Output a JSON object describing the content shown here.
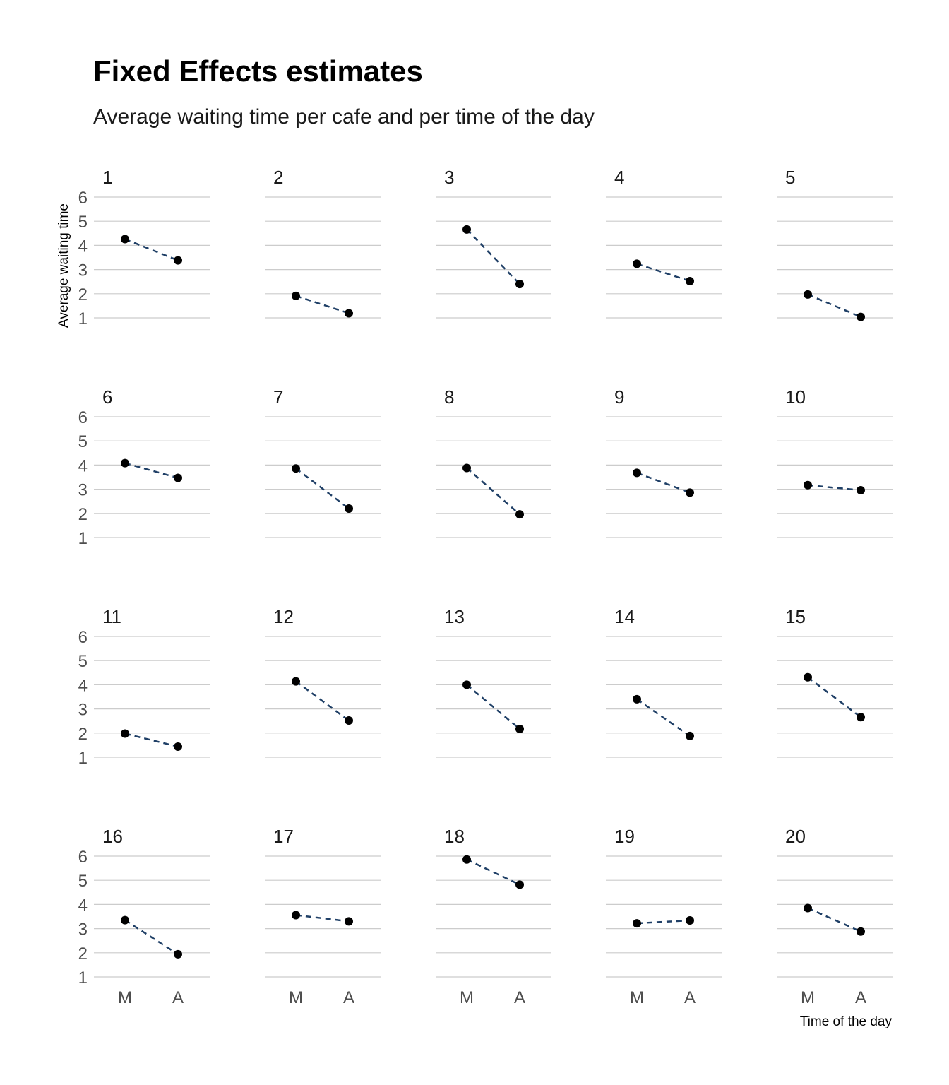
{
  "chart_data": {
    "type": "line",
    "title": "Fixed Effects estimates",
    "subtitle": "Average waiting time per cafe and per time of the day",
    "xlabel": "Time of the day",
    "ylabel": "Average waiting time",
    "categories": [
      "M",
      "A"
    ],
    "y_ticks": [
      "1",
      "2",
      "3",
      "4",
      "5",
      "6"
    ],
    "ylim": [
      1,
      6
    ],
    "grid": "horizontal",
    "facet_layout": "5 columns x 4 rows",
    "colors": {
      "line": "#1f3f66",
      "point": "#000000",
      "grid": "#cccccc"
    },
    "panels": [
      {
        "label": "1",
        "values": [
          4.26,
          3.38
        ]
      },
      {
        "label": "2",
        "values": [
          1.91,
          1.19
        ]
      },
      {
        "label": "3",
        "values": [
          4.66,
          2.4
        ]
      },
      {
        "label": "4",
        "values": [
          3.24,
          2.52
        ]
      },
      {
        "label": "5",
        "values": [
          1.97,
          1.04
        ]
      },
      {
        "label": "6",
        "values": [
          4.08,
          3.47
        ]
      },
      {
        "label": "7",
        "values": [
          3.86,
          2.2
        ]
      },
      {
        "label": "8",
        "values": [
          3.88,
          1.96
        ]
      },
      {
        "label": "9",
        "values": [
          3.68,
          2.86
        ]
      },
      {
        "label": "10",
        "values": [
          3.17,
          2.96
        ]
      },
      {
        "label": "11",
        "values": [
          1.98,
          1.44
        ]
      },
      {
        "label": "12",
        "values": [
          4.14,
          2.52
        ]
      },
      {
        "label": "13",
        "values": [
          4.0,
          2.17
        ]
      },
      {
        "label": "14",
        "values": [
          3.4,
          1.88
        ]
      },
      {
        "label": "15",
        "values": [
          4.31,
          2.66
        ]
      },
      {
        "label": "16",
        "values": [
          3.35,
          1.94
        ]
      },
      {
        "label": "17",
        "values": [
          3.56,
          3.3
        ]
      },
      {
        "label": "18",
        "values": [
          5.86,
          4.82
        ]
      },
      {
        "label": "19",
        "values": [
          3.22,
          3.34
        ]
      },
      {
        "label": "20",
        "values": [
          3.85,
          2.88
        ]
      }
    ]
  }
}
